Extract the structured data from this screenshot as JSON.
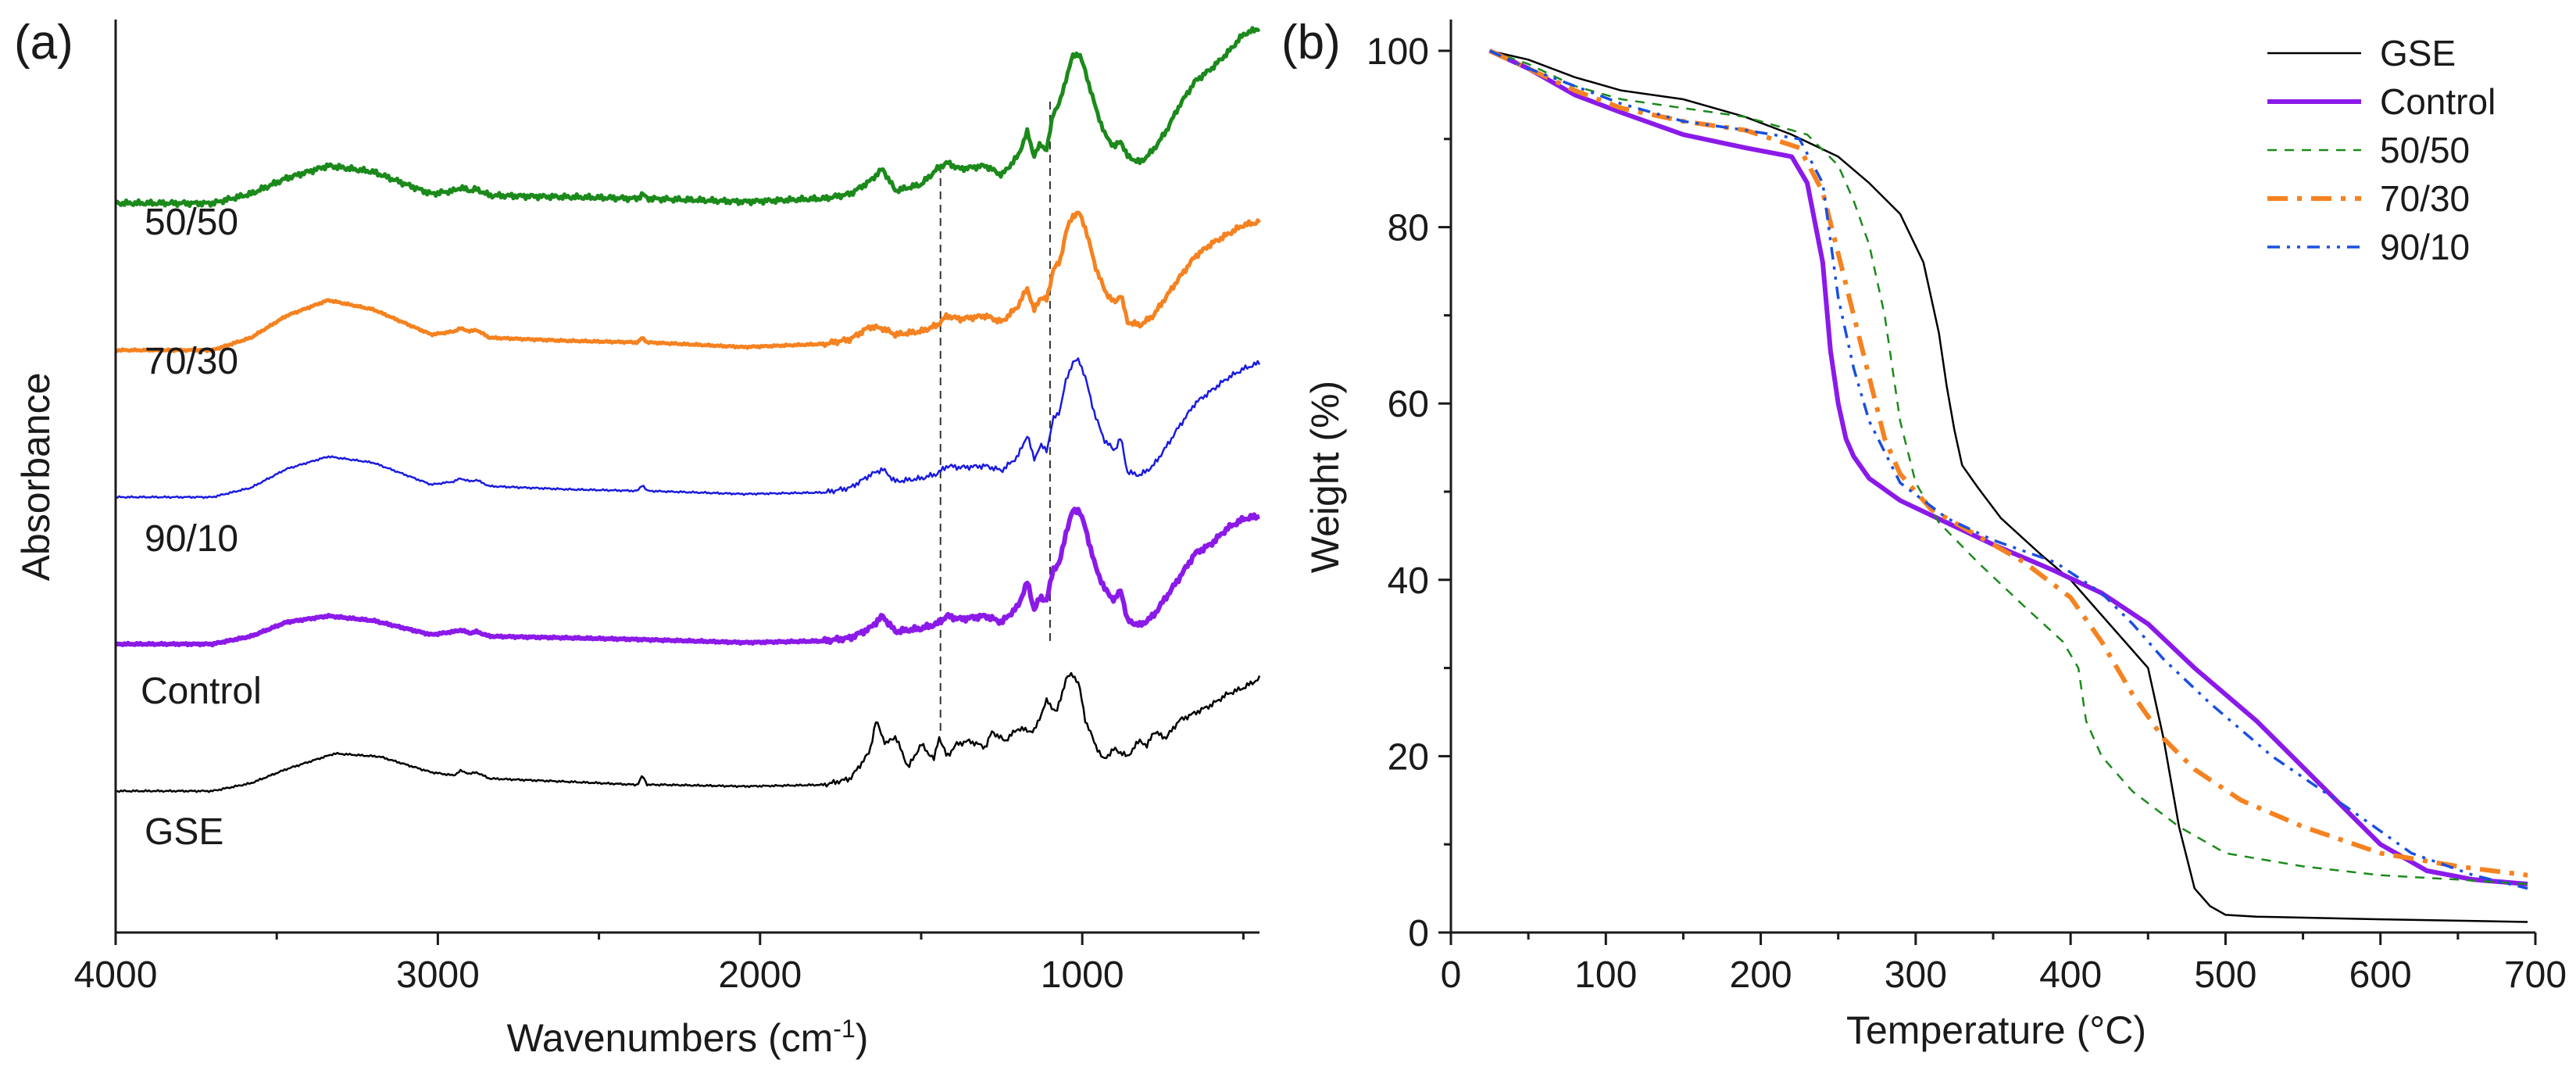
{
  "chart_data": [
    {
      "panel": "(a)",
      "type": "line",
      "title": "",
      "xlabel": "Wavenumbers (cm",
      "xlabel_sup": "-1",
      "xlabel_close": ")",
      "ylabel": "Absorbance",
      "xlim": [
        4000,
        450
      ],
      "x_ticks": [
        "4000",
        "3000",
        "2000",
        "1000"
      ],
      "x_tick_values": [
        4000,
        3000,
        2000,
        1000
      ],
      "reference_lines_x": [
        1440,
        1100
      ],
      "series": [
        {
          "name": "GSE",
          "color": "#000000",
          "width": 2.5,
          "offset": 0,
          "x": [
            4000,
            3700,
            3580,
            3470,
            3320,
            3180,
            3020,
            2950,
            2930,
            2900,
            2880,
            2840,
            2600,
            2380,
            2365,
            2350,
            2300,
            2050,
            1800,
            1720,
            1660,
            1640,
            1610,
            1580,
            1540,
            1500,
            1460,
            1445,
            1420,
            1390,
            1350,
            1300,
            1280,
            1240,
            1200,
            1150,
            1110,
            1080,
            1050,
            1030,
            1010,
            990,
            960,
            935,
            900,
            860,
            820,
            800,
            780,
            740,
            700,
            650,
            600,
            550,
            500,
            450
          ],
          "y": [
            0.0,
            0.0,
            0.05,
            0.14,
            0.24,
            0.22,
            0.12,
            0.1,
            0.13,
            0.11,
            0.12,
            0.08,
            0.06,
            0.04,
            0.1,
            0.04,
            0.04,
            0.03,
            0.04,
            0.08,
            0.25,
            0.45,
            0.3,
            0.35,
            0.15,
            0.3,
            0.2,
            0.35,
            0.22,
            0.3,
            0.32,
            0.28,
            0.38,
            0.32,
            0.4,
            0.38,
            0.58,
            0.5,
            0.72,
            0.75,
            0.68,
            0.45,
            0.3,
            0.2,
            0.27,
            0.22,
            0.33,
            0.28,
            0.38,
            0.34,
            0.45,
            0.5,
            0.55,
            0.62,
            0.66,
            0.72
          ]
        },
        {
          "name": "Control",
          "color": "#8B1AE8",
          "width": 6,
          "offset": 1.0,
          "x": [
            4000,
            3700,
            3580,
            3470,
            3340,
            3200,
            3020,
            2950,
            2930,
            2900,
            2880,
            2840,
            2600,
            2380,
            2050,
            1800,
            1720,
            1660,
            1620,
            1580,
            1500,
            1450,
            1420,
            1380,
            1300,
            1250,
            1200,
            1170,
            1150,
            1130,
            1110,
            1090,
            1070,
            1050,
            1030,
            1010,
            990,
            960,
            930,
            900,
            880,
            860,
            820,
            780,
            740,
            700,
            650,
            600,
            550,
            500,
            450
          ],
          "y": [
            0.0,
            0.0,
            0.05,
            0.14,
            0.18,
            0.15,
            0.06,
            0.08,
            0.09,
            0.07,
            0.08,
            0.05,
            0.04,
            0.03,
            0.01,
            0.02,
            0.04,
            0.1,
            0.18,
            0.08,
            0.1,
            0.13,
            0.18,
            0.16,
            0.18,
            0.14,
            0.24,
            0.4,
            0.22,
            0.3,
            0.28,
            0.48,
            0.52,
            0.72,
            0.85,
            0.86,
            0.74,
            0.5,
            0.35,
            0.28,
            0.35,
            0.15,
            0.12,
            0.18,
            0.3,
            0.42,
            0.58,
            0.64,
            0.74,
            0.8,
            0.82
          ]
        },
        {
          "name": "90/10",
          "color": "#1A1AE0",
          "width": 2.5,
          "offset": 2.0,
          "x": [
            4000,
            3700,
            3580,
            3470,
            3340,
            3200,
            3020,
            2950,
            2930,
            2900,
            2880,
            2840,
            2600,
            2380,
            2365,
            2350,
            2050,
            1800,
            1720,
            1660,
            1620,
            1580,
            1500,
            1450,
            1420,
            1380,
            1300,
            1250,
            1200,
            1170,
            1150,
            1130,
            1110,
            1090,
            1070,
            1050,
            1030,
            1010,
            990,
            960,
            930,
            900,
            880,
            860,
            820,
            780,
            740,
            700,
            650,
            600,
            550,
            500,
            450
          ],
          "y": [
            0.0,
            0.0,
            0.06,
            0.18,
            0.26,
            0.22,
            0.08,
            0.1,
            0.12,
            0.1,
            0.11,
            0.07,
            0.05,
            0.04,
            0.08,
            0.04,
            0.02,
            0.03,
            0.06,
            0.14,
            0.18,
            0.1,
            0.12,
            0.15,
            0.2,
            0.19,
            0.2,
            0.17,
            0.26,
            0.4,
            0.24,
            0.33,
            0.3,
            0.5,
            0.55,
            0.75,
            0.86,
            0.88,
            0.76,
            0.52,
            0.36,
            0.3,
            0.38,
            0.16,
            0.14,
            0.2,
            0.32,
            0.45,
            0.6,
            0.68,
            0.76,
            0.82,
            0.86
          ]
        },
        {
          "name": "70/30",
          "color": "#F58220",
          "width": 5,
          "offset": 3.0,
          "x": [
            4000,
            3700,
            3580,
            3470,
            3340,
            3200,
            3020,
            2950,
            2930,
            2900,
            2880,
            2840,
            2600,
            2380,
            2365,
            2350,
            2050,
            1800,
            1720,
            1660,
            1620,
            1580,
            1500,
            1450,
            1420,
            1380,
            1300,
            1250,
            1200,
            1170,
            1150,
            1130,
            1110,
            1090,
            1070,
            1050,
            1030,
            1010,
            990,
            960,
            930,
            900,
            880,
            860,
            820,
            780,
            740,
            700,
            650,
            600,
            550,
            500,
            450
          ],
          "y": [
            0.0,
            0.0,
            0.08,
            0.22,
            0.32,
            0.26,
            0.1,
            0.12,
            0.14,
            0.12,
            0.13,
            0.08,
            0.06,
            0.05,
            0.08,
            0.05,
            0.02,
            0.04,
            0.07,
            0.15,
            0.14,
            0.1,
            0.12,
            0.16,
            0.22,
            0.2,
            0.22,
            0.18,
            0.28,
            0.4,
            0.25,
            0.34,
            0.32,
            0.52,
            0.56,
            0.76,
            0.86,
            0.88,
            0.78,
            0.54,
            0.38,
            0.3,
            0.36,
            0.18,
            0.16,
            0.22,
            0.34,
            0.46,
            0.6,
            0.68,
            0.74,
            0.8,
            0.82
          ]
        },
        {
          "name": "50/50",
          "color": "#1B8A1B",
          "width": 5,
          "offset": 4.0,
          "x": [
            4000,
            3700,
            3580,
            3470,
            3340,
            3200,
            3020,
            2950,
            2930,
            2900,
            2880,
            2840,
            2600,
            2380,
            2365,
            2350,
            2050,
            1800,
            1720,
            1660,
            1620,
            1580,
            1500,
            1450,
            1420,
            1380,
            1300,
            1250,
            1200,
            1170,
            1150,
            1130,
            1110,
            1090,
            1070,
            1050,
            1030,
            1010,
            990,
            960,
            930,
            900,
            880,
            860,
            820,
            780,
            740,
            700,
            650,
            600,
            550,
            500,
            450
          ],
          "y": [
            0.0,
            0.0,
            0.06,
            0.16,
            0.24,
            0.2,
            0.06,
            0.08,
            0.1,
            0.08,
            0.09,
            0.05,
            0.04,
            0.03,
            0.06,
            0.03,
            0.01,
            0.03,
            0.06,
            0.14,
            0.22,
            0.08,
            0.12,
            0.22,
            0.26,
            0.22,
            0.24,
            0.18,
            0.3,
            0.46,
            0.3,
            0.38,
            0.34,
            0.58,
            0.64,
            0.8,
            0.94,
            0.96,
            0.84,
            0.62,
            0.44,
            0.36,
            0.4,
            0.3,
            0.26,
            0.34,
            0.46,
            0.62,
            0.78,
            0.86,
            0.96,
            1.08,
            1.12
          ]
        }
      ],
      "series_labels": [
        {
          "text": "50/50",
          "series": "50/50"
        },
        {
          "text": "70/30",
          "series": "70/30"
        },
        {
          "text": "90/10",
          "series": "90/10"
        },
        {
          "text": "Control",
          "series": "Control"
        },
        {
          "text": "GSE",
          "series": "GSE"
        }
      ]
    },
    {
      "panel": "(b)",
      "type": "line",
      "title": "",
      "xlabel": "Temperature (°C)",
      "ylabel": "Weight (%)",
      "xlim": [
        0,
        700
      ],
      "ylim": [
        0,
        100
      ],
      "x_ticks": [
        "0",
        "100",
        "200",
        "300",
        "400",
        "500",
        "600",
        "700"
      ],
      "x_tick_values": [
        0,
        100,
        200,
        300,
        400,
        500,
        600,
        700
      ],
      "y_ticks": [
        "0",
        "20",
        "40",
        "60",
        "80",
        "100"
      ],
      "y_tick_values": [
        0,
        20,
        40,
        60,
        80,
        100
      ],
      "legend_position": "top-right",
      "series": [
        {
          "name": "GSE",
          "color": "#000000",
          "width": 2.5,
          "dash": "",
          "x": [
            25,
            50,
            80,
            110,
            150,
            190,
            220,
            250,
            270,
            290,
            305,
            315,
            320,
            325,
            330,
            340,
            355,
            380,
            400,
            420,
            440,
            450,
            460,
            470,
            480,
            490,
            500,
            520,
            600,
            695
          ],
          "y": [
            100,
            99,
            97,
            95.5,
            94.5,
            92.5,
            90.5,
            88,
            85,
            81.5,
            76,
            68,
            62,
            57,
            53,
            50.5,
            47,
            43,
            40,
            36,
            32,
            30,
            22,
            12,
            5,
            3,
            2,
            1.8,
            1.5,
            1.2
          ]
        },
        {
          "name": "Control",
          "color": "#8B1AE8",
          "width": 6,
          "dash": "",
          "x": [
            25,
            50,
            80,
            110,
            150,
            190,
            220,
            230,
            240,
            245,
            250,
            255,
            260,
            270,
            290,
            320,
            350,
            390,
            420,
            450,
            480,
            520,
            560,
            600,
            630,
            660,
            695
          ],
          "y": [
            100,
            98,
            95,
            93,
            90.5,
            89,
            88,
            85,
            76,
            66,
            60,
            56,
            54,
            51.5,
            49,
            46.5,
            44,
            41,
            38.5,
            35,
            30,
            24,
            17,
            10,
            7,
            6,
            5.5
          ]
        },
        {
          "name": "50/50",
          "color": "#1B8A1B",
          "width": 2.5,
          "dash": "12 10",
          "x": [
            25,
            50,
            80,
            110,
            150,
            190,
            230,
            250,
            260,
            270,
            280,
            290,
            300,
            315,
            340,
            370,
            395,
            405,
            410,
            420,
            440,
            470,
            500,
            550,
            600,
            650,
            695
          ],
          "y": [
            100,
            98.5,
            96,
            94.5,
            93.5,
            92.5,
            90.5,
            87,
            83,
            78,
            70,
            58,
            51,
            46.5,
            42,
            37,
            33,
            30,
            24,
            20,
            16,
            12,
            9,
            7.5,
            6.5,
            6,
            5.5
          ]
        },
        {
          "name": "70/30",
          "color": "#F58220",
          "width": 6,
          "dash": "26 12 6 12",
          "x": [
            25,
            50,
            80,
            110,
            150,
            190,
            225,
            240,
            250,
            260,
            270,
            280,
            290,
            310,
            340,
            370,
            400,
            420,
            440,
            460,
            480,
            510,
            550,
            600,
            650,
            695
          ],
          "y": [
            100,
            98,
            95.5,
            93.5,
            92,
            91,
            89,
            84,
            77,
            70,
            63,
            56,
            52,
            48,
            45,
            42,
            38,
            33,
            27,
            22,
            18.5,
            15,
            12,
            9,
            7.5,
            6.5
          ]
        },
        {
          "name": "90/10",
          "color": "#1A4FE0",
          "width": 3.5,
          "dash": "16 9 4 9 4 9",
          "x": [
            25,
            50,
            80,
            110,
            150,
            190,
            225,
            240,
            250,
            260,
            270,
            290,
            320,
            350,
            390,
            420,
            440,
            460,
            490,
            530,
            580,
            620,
            660,
            695
          ],
          "y": [
            100,
            98,
            96,
            94,
            92,
            91,
            90,
            85,
            72,
            64,
            58,
            51,
            47,
            44.5,
            42,
            38.5,
            35,
            31,
            26,
            20,
            14,
            9,
            6.5,
            5
          ]
        }
      ],
      "legend": [
        "GSE",
        "Control",
        "50/50",
        "70/30",
        "90/10"
      ]
    }
  ]
}
